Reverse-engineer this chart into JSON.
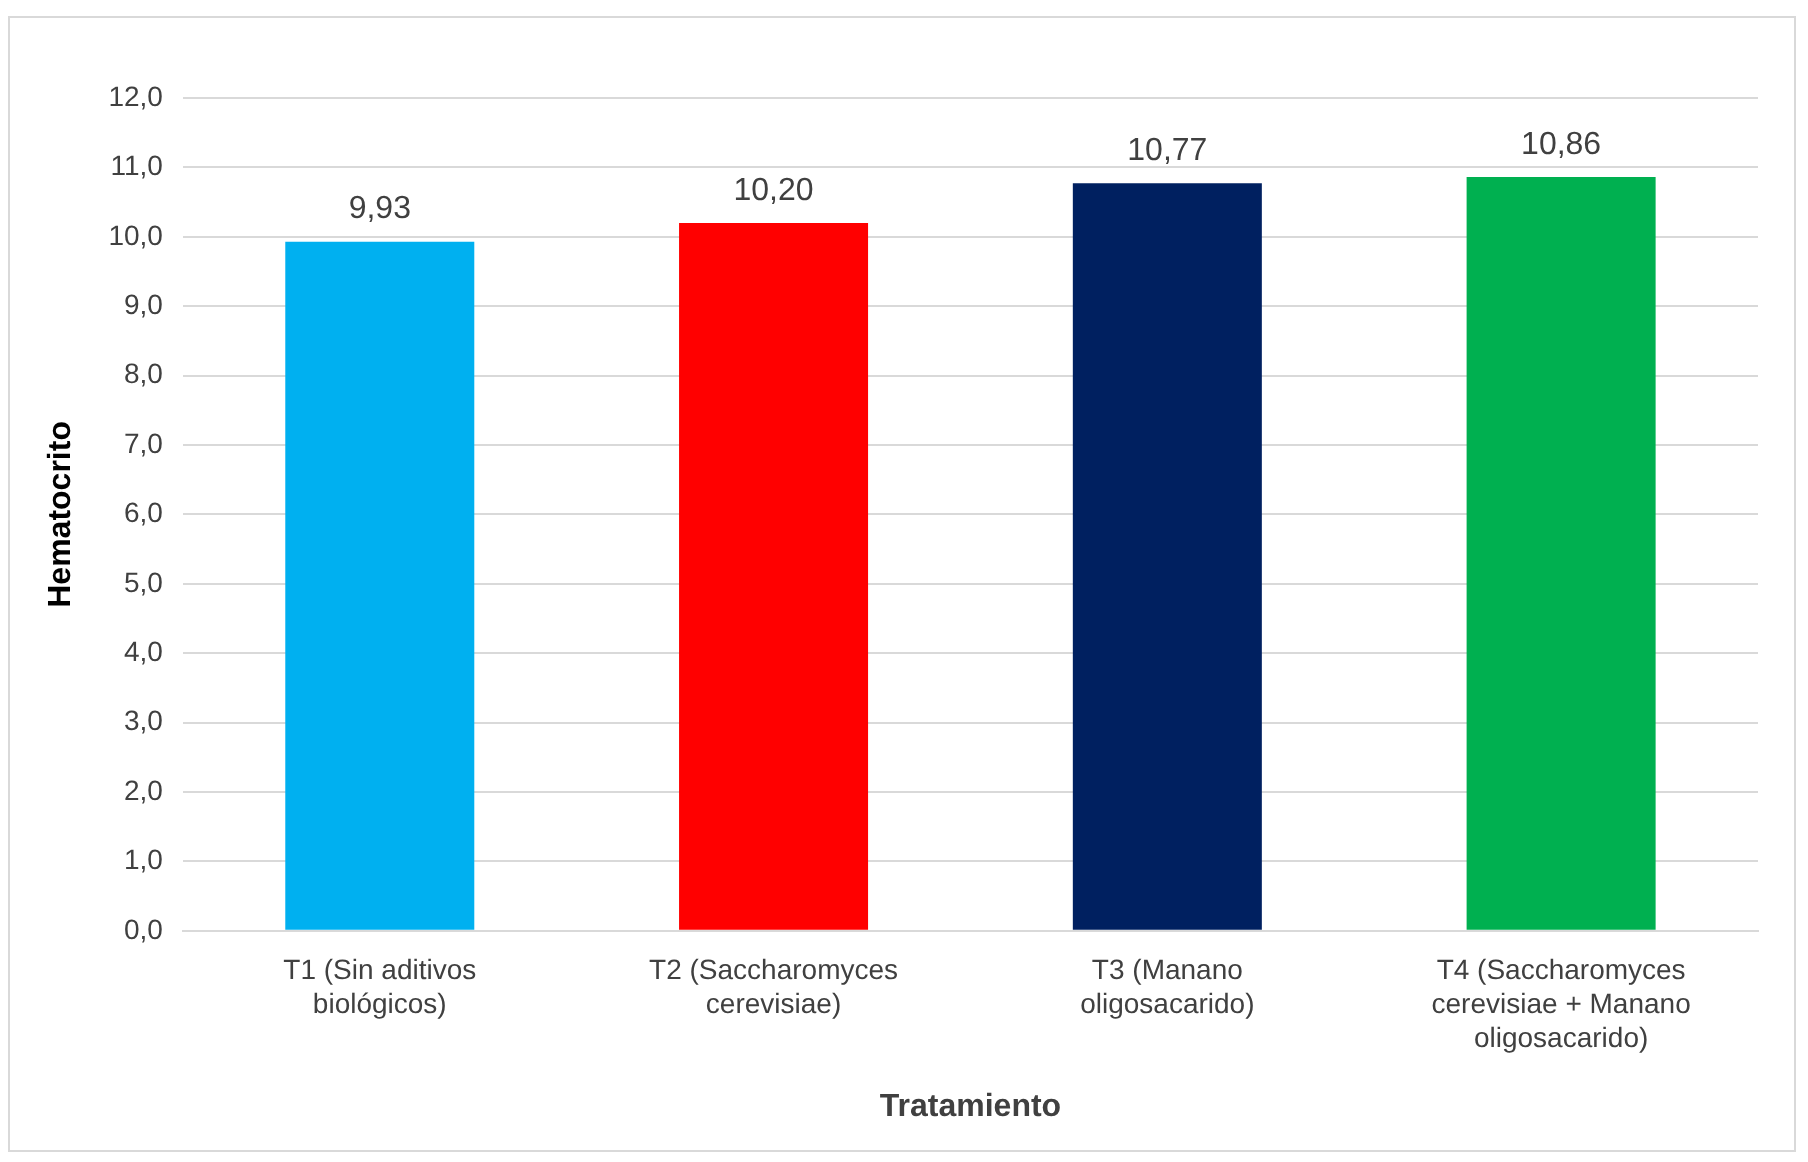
{
  "chart_data": {
    "type": "bar",
    "xlabel": "Tratamiento",
    "ylabel": "Hematocrito",
    "categories": [
      "T1 (Sin aditivos biológicos)",
      "T2 (Saccharomyces cerevisiae)",
      "T3 (Manano oligosacarido)",
      "T4 (Saccharomyces cerevisiae + Manano oligosacarido)"
    ],
    "values": [
      9.93,
      10.2,
      10.77,
      10.86
    ],
    "colors": [
      "#00b0f0",
      "#ff0000",
      "#002060",
      "#00b050"
    ],
    "value_labels": [
      "9,93",
      "10,20",
      "10,77",
      "10,86"
    ],
    "ylim": [
      0,
      12
    ],
    "yticks": [
      {
        "value": 0,
        "label": "0,0"
      },
      {
        "value": 1,
        "label": "1,0"
      },
      {
        "value": 2,
        "label": "2,0"
      },
      {
        "value": 3,
        "label": "3,0"
      },
      {
        "value": 4,
        "label": "4,0"
      },
      {
        "value": 5,
        "label": "5,0"
      },
      {
        "value": 6,
        "label": "6,0"
      },
      {
        "value": 7,
        "label": "7,0"
      },
      {
        "value": 8,
        "label": "8,0"
      },
      {
        "value": 9,
        "label": "9,0"
      },
      {
        "value": 10,
        "label": "10,0"
      },
      {
        "value": 11,
        "label": "11,0"
      },
      {
        "value": 12,
        "label": "12,0"
      }
    ],
    "grid": "y",
    "legend": false
  }
}
